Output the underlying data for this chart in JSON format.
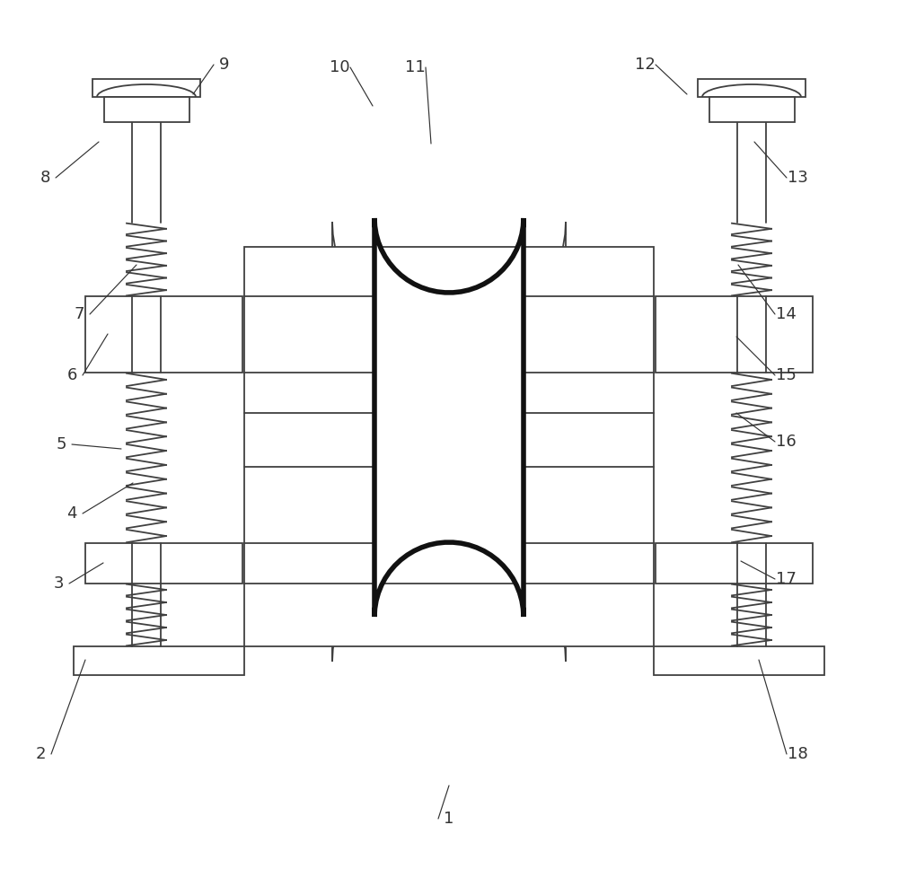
{
  "bg_color": "#ffffff",
  "lc": "#404040",
  "cable_lc": "#1a1a1a",
  "alc": "#333333",
  "nlw": 1.3,
  "tlw": 3.5,
  "alw": 0.85,
  "fs": 13
}
